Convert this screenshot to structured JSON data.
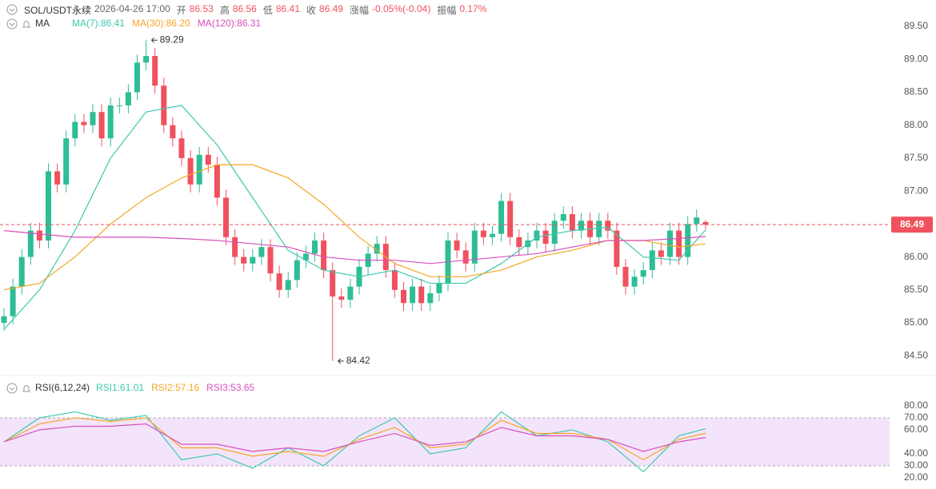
{
  "header": {
    "symbol": "SOL/USDT永续",
    "time": "2026-04-26 17:00",
    "open_label": "开",
    "open": "86.53",
    "high_label": "高",
    "high": "86.56",
    "low_label": "低",
    "low": "86.41",
    "close_label": "收",
    "close": "86.49",
    "change_label": "涨幅",
    "change": "-0.05%(-0.04)",
    "amplitude_label": "振幅",
    "amplitude": "0.17%"
  },
  "chart_data": [
    {
      "type": "candlestick",
      "title": "MA",
      "up_color": "#2ebd96",
      "down_color": "#f0515f",
      "open": [
        85.0,
        85.1,
        85.55,
        86.0,
        86.4,
        86.25,
        87.3,
        87.1,
        87.8,
        88.05,
        88.0,
        88.2,
        87.8,
        88.3,
        88.3,
        88.5,
        88.95,
        89.05,
        88.6,
        88.0,
        87.8,
        87.5,
        87.1,
        87.55,
        87.4,
        86.9,
        86.3,
        86.0,
        85.9,
        86.0,
        86.15,
        85.75,
        85.5,
        85.65,
        85.95,
        86.05,
        86.25,
        85.8,
        85.4,
        85.35,
        85.55,
        85.85,
        86.05,
        86.2,
        85.8,
        85.5,
        85.3,
        85.55,
        85.3,
        85.45,
        85.6,
        86.25,
        86.1,
        85.9,
        86.4,
        86.3,
        86.35,
        86.85,
        86.3,
        86.15,
        86.25,
        86.4,
        86.2,
        86.55,
        86.65,
        86.4,
        86.55,
        86.3,
        86.55,
        86.4,
        85.85,
        85.55,
        85.7,
        85.8,
        86.1,
        86.0,
        86.4,
        86.0,
        86.5,
        86.53
      ],
      "high": [
        85.22,
        85.67,
        86.12,
        86.52,
        86.52,
        87.42,
        87.42,
        87.92,
        88.17,
        88.17,
        88.32,
        88.32,
        88.42,
        88.42,
        88.62,
        89.07,
        89.29,
        89.17,
        88.72,
        88.12,
        87.92,
        87.62,
        87.67,
        87.67,
        87.52,
        87.02,
        86.42,
        86.12,
        86.12,
        86.27,
        86.27,
        85.87,
        85.77,
        86.07,
        86.17,
        86.37,
        86.37,
        85.92,
        85.52,
        85.67,
        85.97,
        86.17,
        86.32,
        86.32,
        85.92,
        85.62,
        85.67,
        85.67,
        85.57,
        85.72,
        86.37,
        86.37,
        86.22,
        86.52,
        86.52,
        86.47,
        86.97,
        86.97,
        86.42,
        86.37,
        86.52,
        86.52,
        86.67,
        86.77,
        86.77,
        86.67,
        86.67,
        86.67,
        86.67,
        86.52,
        85.97,
        85.82,
        85.92,
        86.22,
        86.22,
        86.52,
        86.52,
        86.62,
        86.72,
        86.56
      ],
      "low": [
        84.88,
        84.98,
        85.43,
        85.88,
        86.13,
        86.13,
        86.98,
        86.98,
        87.68,
        87.88,
        87.88,
        87.68,
        87.68,
        88.18,
        88.18,
        88.38,
        88.83,
        88.48,
        87.88,
        87.68,
        87.38,
        86.98,
        86.98,
        87.28,
        86.78,
        86.18,
        85.88,
        85.78,
        85.78,
        85.88,
        85.63,
        85.38,
        85.38,
        85.53,
        85.83,
        85.93,
        85.68,
        84.42,
        85.23,
        85.23,
        85.43,
        85.73,
        85.93,
        85.68,
        85.38,
        85.18,
        85.18,
        85.18,
        85.18,
        85.33,
        85.48,
        85.98,
        85.78,
        85.78,
        86.18,
        86.18,
        86.23,
        86.18,
        86.03,
        86.03,
        86.13,
        86.08,
        86.08,
        86.43,
        86.28,
        86.28,
        86.18,
        86.18,
        86.28,
        85.73,
        85.43,
        85.43,
        85.58,
        85.68,
        85.88,
        85.88,
        85.88,
        85.88,
        86.38,
        86.41
      ],
      "close": [
        85.1,
        85.55,
        86.0,
        86.4,
        86.25,
        87.3,
        87.1,
        87.8,
        88.05,
        88.0,
        88.2,
        87.8,
        88.3,
        88.3,
        88.5,
        88.95,
        89.05,
        88.6,
        88.0,
        87.8,
        87.5,
        87.1,
        87.55,
        87.4,
        86.9,
        86.3,
        86.0,
        85.9,
        86.0,
        86.15,
        85.75,
        85.5,
        85.65,
        85.95,
        86.05,
        86.25,
        85.8,
        85.4,
        85.35,
        85.55,
        85.85,
        86.05,
        86.2,
        85.8,
        85.5,
        85.3,
        85.55,
        85.3,
        85.45,
        85.6,
        86.25,
        86.1,
        85.9,
        86.4,
        86.3,
        86.35,
        86.85,
        86.3,
        86.15,
        86.25,
        86.4,
        86.2,
        86.55,
        86.65,
        86.4,
        86.55,
        86.3,
        86.55,
        86.4,
        85.85,
        85.55,
        85.7,
        85.8,
        86.1,
        86.0,
        86.4,
        86.0,
        86.5,
        86.6,
        86.49
      ],
      "series": [
        {
          "name": "MA(7):86.41",
          "color": "#3cc8ae",
          "x": [
            0,
            4,
            8,
            12,
            16,
            20,
            24,
            28,
            32,
            36,
            40,
            44,
            48,
            52,
            56,
            60,
            64,
            68,
            72,
            76,
            79
          ],
          "values": [
            84.9,
            85.5,
            86.4,
            87.5,
            88.2,
            88.3,
            87.7,
            86.9,
            86.1,
            85.8,
            85.7,
            85.8,
            85.6,
            85.6,
            85.9,
            86.3,
            86.4,
            86.45,
            86.0,
            85.95,
            86.41
          ]
        },
        {
          "name": "MA(30):86.20",
          "color": "#f5a623",
          "x": [
            0,
            4,
            8,
            12,
            16,
            20,
            24,
            28,
            32,
            36,
            40,
            44,
            48,
            52,
            56,
            60,
            64,
            68,
            72,
            76,
            79
          ],
          "values": [
            85.5,
            85.6,
            86.0,
            86.5,
            86.9,
            87.2,
            87.4,
            87.4,
            87.2,
            86.8,
            86.3,
            85.9,
            85.7,
            85.7,
            85.8,
            86.0,
            86.1,
            86.25,
            86.25,
            86.15,
            86.2
          ]
        },
        {
          "name": "MA(120):86.31",
          "color": "#d94fbd",
          "x": [
            0,
            4,
            8,
            12,
            16,
            20,
            24,
            28,
            32,
            36,
            40,
            44,
            48,
            52,
            56,
            60,
            64,
            68,
            72,
            76,
            79
          ],
          "values": [
            86.4,
            86.35,
            86.3,
            86.3,
            86.3,
            86.28,
            86.25,
            86.2,
            86.15,
            86.0,
            85.95,
            85.95,
            85.9,
            85.95,
            86.0,
            86.05,
            86.15,
            86.25,
            86.25,
            86.28,
            86.31
          ]
        }
      ],
      "ylim": [
        84.2,
        89.9
      ],
      "yticks": [
        {
          "value": 84.5,
          "label": "84.50"
        },
        {
          "value": 85,
          "label": "85.00"
        },
        {
          "value": 85.5,
          "label": "85.50"
        },
        {
          "value": 86,
          "label": "86.00"
        },
        {
          "value": 86.5,
          "label": "86.50"
        },
        {
          "value": 87,
          "label": "87.00"
        },
        {
          "value": 87.5,
          "label": "87.50"
        },
        {
          "value": 88,
          "label": "88.00"
        },
        {
          "value": 88.5,
          "label": "88.50"
        },
        {
          "value": 89,
          "label": "89.00"
        },
        {
          "value": 89.5,
          "label": "89.50"
        }
      ]
    },
    {
      "type": "line",
      "title": "RSI(6,12,24)",
      "series": [
        {
          "name": "RSI1:61.01",
          "color": "#3cc8ae",
          "x": [
            0,
            4,
            8,
            12,
            16,
            20,
            24,
            28,
            32,
            36,
            40,
            44,
            48,
            52,
            56,
            60,
            64,
            68,
            72,
            76,
            79
          ],
          "values": [
            50,
            70,
            75,
            68,
            72,
            35,
            40,
            28,
            45,
            30,
            55,
            70,
            40,
            45,
            75,
            55,
            60,
            50,
            25,
            55,
            61.01
          ]
        },
        {
          "name": "RSI2:57.16",
          "color": "#f5a623",
          "x": [
            0,
            4,
            8,
            12,
            16,
            20,
            24,
            28,
            32,
            36,
            40,
            44,
            48,
            52,
            56,
            60,
            64,
            68,
            72,
            76,
            79
          ],
          "values": [
            50,
            65,
            70,
            67,
            70,
            45,
            45,
            38,
            42,
            38,
            52,
            62,
            45,
            48,
            68,
            57,
            57,
            52,
            35,
            52,
            57.16
          ]
        },
        {
          "name": "RSI3:53.65",
          "color": "#d94fbd",
          "x": [
            0,
            4,
            8,
            12,
            16,
            20,
            24,
            28,
            32,
            36,
            40,
            44,
            48,
            52,
            56,
            60,
            64,
            68,
            72,
            76,
            79
          ],
          "values": [
            50,
            60,
            63,
            63,
            65,
            48,
            48,
            42,
            45,
            42,
            50,
            57,
            47,
            50,
            62,
            55,
            55,
            52,
            42,
            50,
            53.65
          ]
        }
      ],
      "band": [
        30,
        70
      ],
      "band_color": "#f3e4fb",
      "ylim": [
        12,
        85.3
      ],
      "yticks": [
        {
          "value": 20,
          "label": "20.00"
        },
        {
          "value": 30,
          "label": "30.00"
        },
        {
          "value": 40,
          "label": "40.00"
        },
        {
          "value": 60,
          "label": "60.00"
        },
        {
          "value": 70,
          "label": "70.00"
        },
        {
          "value": 80,
          "label": "80.00"
        }
      ]
    }
  ]
}
